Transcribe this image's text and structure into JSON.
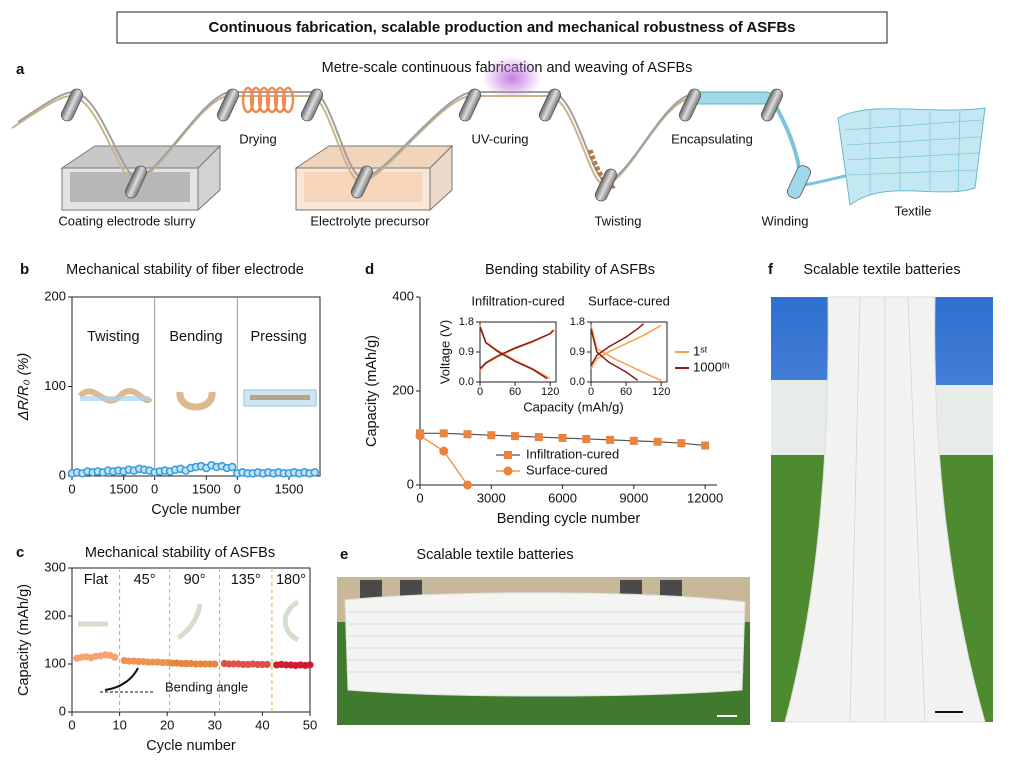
{
  "title": "Continuous fabrication, scalable production and mechanical robustness of ASFBs",
  "panel_a": {
    "letter": "a",
    "title": "Metre-scale continuous fabrication and weaving of ASFBs",
    "steps": [
      "Coating electrode slurry",
      "Drying",
      "Electrolyte precursor",
      "UV-curing",
      "Twisting",
      "Encapsulating",
      "Winding",
      "Textile"
    ]
  },
  "chart_data": [
    {
      "type": "scatter",
      "letter": "b",
      "title": "Mechanical stability of fiber electrode",
      "y_label": "ΔR/R₀ (%)",
      "x_label": "Cycle number",
      "ylim": [
        0,
        200
      ],
      "yticks": [
        0,
        100,
        200
      ],
      "color": "#3a9ad9",
      "panels": [
        {
          "name": "Twisting",
          "xlim": [
            0,
            2400
          ],
          "xticks": [
            0,
            1500
          ],
          "x": [
            0,
            150,
            300,
            450,
            600,
            750,
            900,
            1050,
            1200,
            1350,
            1500,
            1650,
            1800,
            1950,
            2100,
            2250
          ],
          "values": [
            3,
            4,
            3,
            5,
            4,
            5,
            4,
            6,
            5,
            6,
            5,
            7,
            6,
            8,
            7,
            6
          ]
        },
        {
          "name": "Bending",
          "xlim": [
            0,
            2400
          ],
          "xticks": [
            0,
            1500
          ],
          "x": [
            0,
            150,
            300,
            450,
            600,
            750,
            900,
            1050,
            1200,
            1350,
            1500,
            1650,
            1800,
            1950,
            2100,
            2250
          ],
          "values": [
            4,
            5,
            6,
            5,
            7,
            8,
            6,
            9,
            10,
            11,
            9,
            12,
            10,
            11,
            9,
            10
          ]
        },
        {
          "name": "Pressing",
          "xlim": [
            0,
            2400
          ],
          "xticks": [
            0,
            1500
          ],
          "x": [
            0,
            150,
            300,
            450,
            600,
            750,
            900,
            1050,
            1200,
            1350,
            1500,
            1650,
            1800,
            1950,
            2100,
            2250
          ],
          "values": [
            3,
            4,
            3,
            3,
            4,
            3,
            4,
            3,
            4,
            3,
            3,
            4,
            3,
            4,
            3,
            4
          ]
        }
      ]
    },
    {
      "type": "scatter",
      "letter": "c",
      "title": "Mechanical stability of ASFBs",
      "y_label": "Capacity (mAh/g)",
      "x_label": "Cycle number",
      "xlim": [
        0,
        50
      ],
      "xticks": [
        0,
        10,
        20,
        30,
        40,
        50
      ],
      "ylim": [
        0,
        300
      ],
      "yticks": [
        0,
        100,
        200,
        300
      ],
      "annotation": "Bending angle",
      "segments": [
        {
          "name": "Flat",
          "color": "#f4a46c",
          "x": [
            1,
            2,
            3,
            4,
            5,
            6,
            7,
            8,
            9
          ],
          "values": [
            112,
            114,
            115,
            113,
            116,
            117,
            119,
            118,
            114
          ]
        },
        {
          "name": "45°",
          "color": "#ee9352",
          "x": [
            11,
            12,
            13,
            14,
            15,
            16,
            17,
            18,
            19,
            20
          ],
          "values": [
            107,
            106,
            106,
            105,
            105,
            104,
            104,
            104,
            103,
            103
          ]
        },
        {
          "name": "90°",
          "color": "#e8843c",
          "x": [
            21,
            22,
            23,
            24,
            25,
            26,
            27,
            28,
            29,
            30
          ],
          "values": [
            102,
            102,
            101,
            101,
            101,
            100,
            100,
            100,
            100,
            100
          ]
        },
        {
          "name": "135°",
          "color": "#e0504a",
          "x": [
            32,
            33,
            34,
            35,
            36,
            37,
            38,
            39,
            40,
            41
          ],
          "values": [
            101,
            100,
            100,
            100,
            99,
            99,
            100,
            99,
            99,
            99
          ]
        },
        {
          "name": "180°",
          "color": "#d01c30",
          "x": [
            43,
            44,
            45,
            46,
            47,
            48,
            49,
            50
          ],
          "values": [
            98,
            99,
            98,
            98,
            97,
            98,
            97,
            98
          ]
        }
      ]
    },
    {
      "type": "line",
      "letter": "d",
      "title": "Bending stability of ASFBs",
      "y_label": "Capacity (mAh/g)",
      "x_label": "Bending cycle number",
      "xlim": [
        0,
        12500
      ],
      "xticks": [
        0,
        3000,
        6000,
        9000,
        12000
      ],
      "ylim": [
        0,
        400
      ],
      "yticks": [
        0,
        200,
        400
      ],
      "legend": true,
      "series": [
        {
          "name": "Infiltration-cured",
          "color": "#e8843c",
          "line_color": "#555555",
          "marker": "square",
          "x": [
            0,
            1000,
            2000,
            3000,
            4000,
            5000,
            6000,
            7000,
            8000,
            9000,
            10000,
            11000,
            12000
          ],
          "values": [
            110,
            110,
            108,
            106,
            104,
            102,
            100,
            98,
            96,
            94,
            92,
            89,
            84
          ]
        },
        {
          "name": "Surface-cured",
          "color": "#e8843c",
          "line_color": "#e8843c",
          "marker": "circle",
          "x": [
            0,
            1000,
            2000
          ],
          "values": [
            105,
            72,
            0
          ]
        }
      ]
    },
    {
      "type": "line",
      "title": "Infiltration-cured",
      "y_label": "Voltage (V)",
      "x_label": "Capacity (mAh/g)",
      "xlim": [
        0,
        130
      ],
      "xticks": [
        0,
        60,
        120
      ],
      "ylim": [
        0,
        1.8
      ],
      "yticks": [
        {
          "value": 0,
          "label": "0.0"
        },
        0.9,
        1.8
      ],
      "series": [
        {
          "color": "#f5a04a",
          "charge": {
            "x": [
              0,
              10,
              30,
              60,
              90,
              120,
              130
            ],
            "values": [
              0.35,
              0.55,
              0.75,
              1.0,
              1.2,
              1.45,
              1.6
            ]
          },
          "discharge": {
            "x": [
              0,
              10,
              30,
              60,
              90,
              120
            ],
            "values": [
              1.7,
              1.2,
              0.95,
              0.65,
              0.4,
              0.1
            ]
          }
        },
        {
          "color": "#8b1a1a",
          "charge": {
            "x": [
              0,
              10,
              30,
              60,
              90,
              120,
              125
            ],
            "values": [
              0.4,
              0.58,
              0.78,
              1.02,
              1.22,
              1.45,
              1.55
            ]
          },
          "discharge": {
            "x": [
              0,
              10,
              30,
              60,
              90,
              115
            ],
            "values": [
              1.65,
              1.18,
              0.92,
              0.62,
              0.38,
              0.1
            ]
          }
        }
      ]
    },
    {
      "type": "line",
      "title": "Surface-cured",
      "xlim": [
        0,
        130
      ],
      "xticks": [
        0,
        60,
        120
      ],
      "ylim": [
        0,
        1.8
      ],
      "yticks": [
        {
          "value": 0,
          "label": "0.0"
        },
        0.9,
        1.8
      ],
      "legend": true,
      "series": [
        {
          "name": "1ˢᵗ",
          "color": "#f5a04a",
          "charge": {
            "x": [
              0,
              10,
              30,
              60,
              90,
              120
            ],
            "values": [
              0.4,
              0.7,
              0.9,
              1.15,
              1.4,
              1.7
            ]
          },
          "discharge": {
            "x": [
              0,
              10,
              40,
              70,
              100,
              120
            ],
            "values": [
              1.7,
              1.0,
              0.7,
              0.45,
              0.2,
              0.05
            ]
          }
        },
        {
          "name": "1000ᵗʰ",
          "color": "#8b1a1a",
          "charge": {
            "x": [
              0,
              10,
              30,
              60,
              80,
              90
            ],
            "values": [
              0.5,
              0.8,
              1.05,
              1.35,
              1.6,
              1.75
            ]
          },
          "discharge": {
            "x": [
              0,
              10,
              30,
              60,
              80
            ],
            "values": [
              1.6,
              0.9,
              0.6,
              0.3,
              0.05
            ]
          }
        }
      ]
    }
  ],
  "panel_e": {
    "letter": "e",
    "title": "Scalable textile batteries"
  },
  "panel_f": {
    "letter": "f",
    "title": "Scalable textile batteries"
  }
}
